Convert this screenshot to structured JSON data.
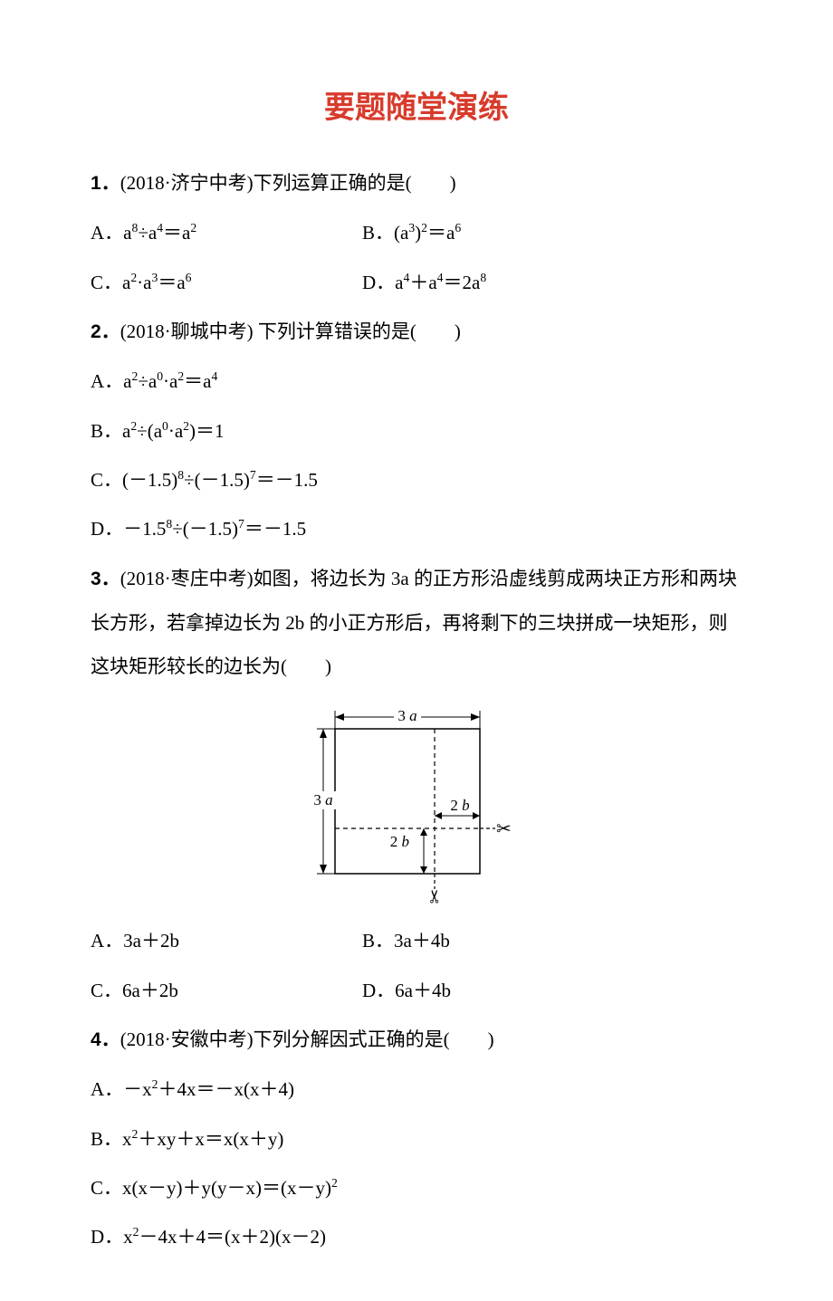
{
  "title_text": "要题随堂演练",
  "title_color": "#d83a2b",
  "q1": {
    "num": "1．",
    "src": "(2018·济宁中考)",
    "stem": "下列运算正确的是(　　)",
    "A_label": "A．",
    "A_body_html": "a<sup>8</sup>÷a<sup>4</sup>＝a<sup>2</sup>",
    "B_label": "B．",
    "B_body_html": "(a<sup>3</sup>)<sup>2</sup>＝a<sup>6</sup>",
    "C_label": "C．",
    "C_body_html": "a<sup>2</sup>·a<sup>3</sup>＝a<sup>6</sup>",
    "D_label": "D．",
    "D_body_html": "a<sup>4</sup>＋a<sup>4</sup>＝2a<sup>8</sup>"
  },
  "q2": {
    "num": "2．",
    "src": "(2018·聊城中考)",
    "stem": " 下列计算错误的是(　　)",
    "A_label": "A．",
    "A_body_html": "a<sup>2</sup>÷a<sup>0</sup>·a<sup>2</sup>＝a<sup>4</sup>",
    "B_label": "B．",
    "B_body_html": "a<sup>2</sup>÷(a<sup>0</sup>·a<sup>2</sup>)＝1",
    "C_label": "C．",
    "C_body_html": "(－1.5)<sup>8</sup>÷(－1.5)<sup>7</sup>＝－1.5",
    "D_label": "D．",
    "D_body_html": "－1.5<sup>8</sup>÷(－1.5)<sup>7</sup>＝－1.5"
  },
  "q3": {
    "num": "3．",
    "src": "(2018·枣庄中考)",
    "stem_full": "如图，将边长为 3a 的正方形沿虚线剪成两块正方形和两块长方形，若拿掉边长为 2b 的小正方形后，再将剩下的三块拼成一块矩形，则这块矩形较长的边长为(　　)",
    "A_label": "A．",
    "A_body": "3a＋2b",
    "B_label": "B．",
    "B_body": "3a＋4b",
    "C_label": "C．",
    "C_body": "6a＋2b",
    "D_label": "D．",
    "D_body": "6a＋4b",
    "fig": {
      "label_3a_top": "3 a",
      "label_3a_left": "3 a",
      "label_2b_right": "2 b",
      "label_2b_inner": "2 b",
      "stroke": "#000000",
      "italic_font": "italic 17px 'Times New Roman', serif",
      "upright_font": "17px 'Times New Roman', serif"
    }
  },
  "q4": {
    "num": "4．",
    "src": "(2018·安徽中考)",
    "stem": "下列分解因式正确的是(　　)",
    "A_label": "A．",
    "A_body_html": "－x<sup>2</sup>＋4x＝－x(x＋4)",
    "B_label": "B．",
    "B_body_html": "x<sup>2</sup>＋xy＋x＝x(x＋y)",
    "C_label": "C．",
    "C_body_html": "x(x－y)＋y(y－x)＝(x－y)<sup>2</sup>",
    "D_label": "D．",
    "D_body_html": "x<sup>2</sup>－4x＋4＝(x＋2)(x－2)"
  }
}
